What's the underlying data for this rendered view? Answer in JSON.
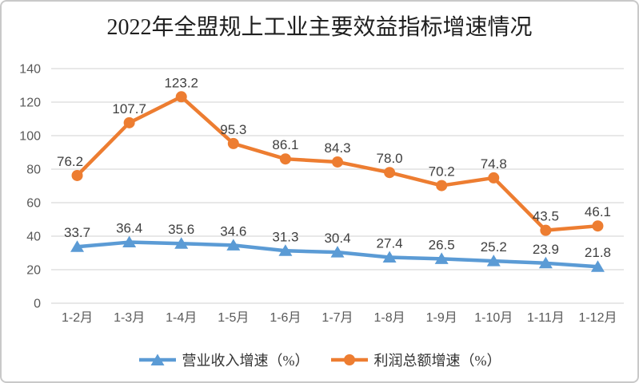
{
  "chart_data": {
    "type": "line",
    "title": "2022年全盟规上工业主要效益指标增速情况",
    "xlabel": "",
    "ylabel": "",
    "categories": [
      "1-2月",
      "1-3月",
      "1-4月",
      "1-5月",
      "1-6月",
      "1-7月",
      "1-8月",
      "1-9月",
      "1-10月",
      "1-11月",
      "1-12月"
    ],
    "series": [
      {
        "name": "营业收入增速（%）",
        "marker": "triangle",
        "color": "#5B9BD5",
        "values": [
          33.7,
          36.4,
          35.6,
          34.6,
          31.3,
          30.4,
          27.4,
          26.5,
          25.2,
          23.9,
          21.8
        ]
      },
      {
        "name": "利润总额增速（%）",
        "marker": "circle",
        "color": "#ED7D31",
        "values": [
          76.2,
          107.7,
          123.2,
          95.3,
          86.1,
          84.3,
          78.0,
          70.2,
          74.8,
          43.5,
          46.1
        ]
      }
    ],
    "ylim": [
      0,
      140
    ],
    "yticks": [
      0,
      20,
      40,
      60,
      80,
      100,
      120,
      140
    ],
    "grid": "horizontal",
    "legend_position": "bottom",
    "colors": {
      "grid": "#D9D9D9",
      "axis_text": "#595959",
      "data_label": "#3F3F3F",
      "title": "#1F1F1F",
      "frame_border": "#C9C9C9",
      "background": "#FFFFFF"
    }
  }
}
